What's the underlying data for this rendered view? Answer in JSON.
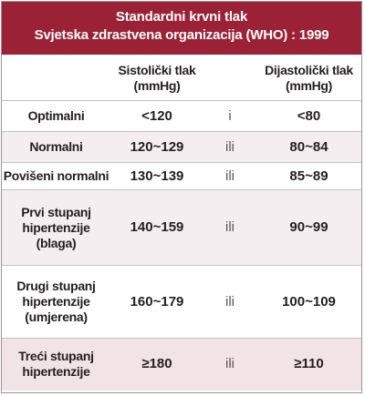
{
  "header": {
    "title": "Standardni krvni tlak",
    "subtitle": "Svjetska zdrastvena organizacija (WHO) : 1999"
  },
  "columns": {
    "systolic": [
      "Sistolički tlak",
      "(mmHg)"
    ],
    "diastolic": [
      "Dijastolički tlak",
      "(mmHg)"
    ]
  },
  "rows": [
    {
      "category": [
        "Optimalni"
      ],
      "systolic": "<120",
      "conj": "i",
      "diastolic": "<80"
    },
    {
      "category": [
        "Normalni"
      ],
      "systolic": "120~129",
      "conj": "ili",
      "diastolic": "80~84"
    },
    {
      "category": [
        "Povišeni normalni"
      ],
      "systolic": "130~139",
      "conj": "ili",
      "diastolic": "85~89"
    },
    {
      "category": [
        "Prvi stupanj",
        "hipertenzije",
        "(blaga)"
      ],
      "systolic": "140~159",
      "conj": "ili",
      "diastolic": "90~99"
    },
    {
      "category": [
        "Drugi stupanj",
        "hipertenzije",
        "(umjerena)"
      ],
      "systolic": "160~179",
      "conj": "ili",
      "diastolic": "100~109"
    },
    {
      "category": [
        "Treći stupanj",
        "hipertenzije"
      ],
      "systolic": "≥180",
      "conj": "ili",
      "diastolic": "≥110"
    }
  ],
  "colors": {
    "header_bg": "#9b2236",
    "row_tint": "#f5eef0",
    "row_deep": "#f1e3e6"
  }
}
